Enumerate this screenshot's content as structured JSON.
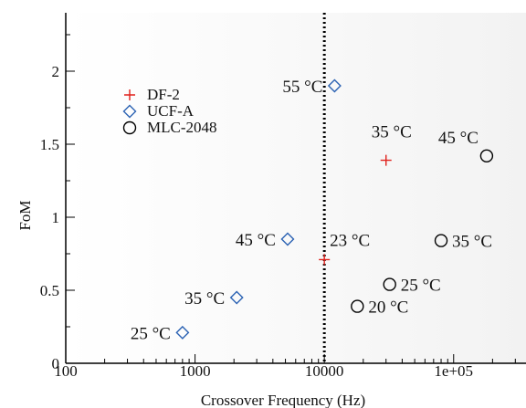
{
  "chart_data": {
    "type": "scatter",
    "xlabel": "Crossover Frequency (Hz)",
    "ylabel": "FoM",
    "x_scale": "log",
    "xlim": [
      100,
      400000
    ],
    "ylim": [
      0,
      2.4
    ],
    "x_ticks": [
      {
        "value": 100,
        "label": "100"
      },
      {
        "value": 1000,
        "label": "1000"
      },
      {
        "value": 10000,
        "label": "10000"
      },
      {
        "value": 100000,
        "label": "1e+05"
      }
    ],
    "y_ticks": [
      {
        "value": 0,
        "label": "0"
      },
      {
        "value": 0.5,
        "label": "0.5"
      },
      {
        "value": 1,
        "label": "1"
      },
      {
        "value": 1.5,
        "label": "1.5"
      },
      {
        "value": 2,
        "label": "2"
      }
    ],
    "vertical_reference_line": {
      "x": 10000,
      "style": "dotted",
      "color": "#000000"
    },
    "legend_position": "upper-left",
    "series": [
      {
        "name": "DF-2",
        "marker": "plus",
        "color": "#e0201b",
        "points": [
          {
            "x": 10000,
            "y": 0.71,
            "label": "23 °C"
          },
          {
            "x": 30000,
            "y": 1.39,
            "label": "35 °C"
          }
        ]
      },
      {
        "name": "UCF-A",
        "marker": "diamond",
        "color": "#2b62b3",
        "points": [
          {
            "x": 800,
            "y": 0.21,
            "label": "25 °C"
          },
          {
            "x": 2100,
            "y": 0.45,
            "label": "35 °C"
          },
          {
            "x": 5200,
            "y": 0.85,
            "label": "45 °C"
          },
          {
            "x": 12000,
            "y": 1.9,
            "label": "55 °C"
          }
        ]
      },
      {
        "name": "MLC-2048",
        "marker": "circle",
        "color": "#000000",
        "points": [
          {
            "x": 18000,
            "y": 0.39,
            "label": "20 °C"
          },
          {
            "x": 32000,
            "y": 0.54,
            "label": "25 °C"
          },
          {
            "x": 80000,
            "y": 0.84,
            "label": "35 °C"
          },
          {
            "x": 180000,
            "y": 1.42,
            "label": "45 °C"
          }
        ]
      }
    ]
  }
}
